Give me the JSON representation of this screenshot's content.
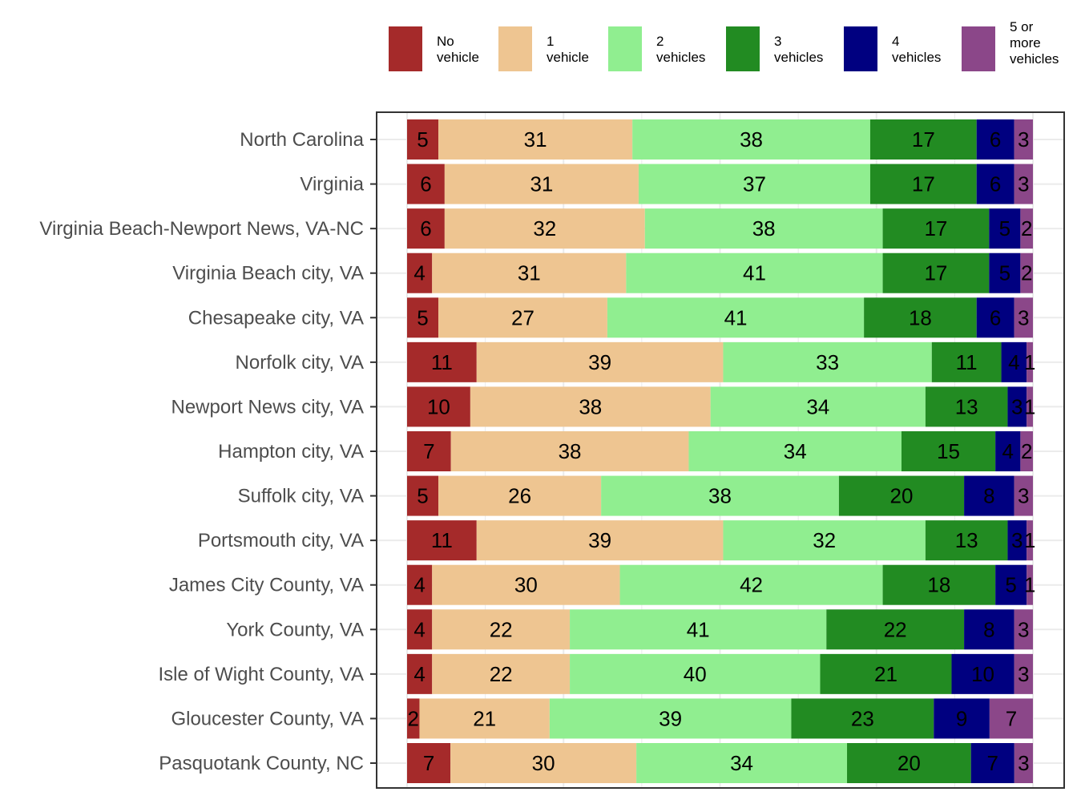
{
  "chart_data": {
    "type": "bar",
    "orientation": "horizontal",
    "stacked": "fill",
    "title": "",
    "xlabel": "",
    "ylabel": "",
    "xlim": [
      0,
      1
    ],
    "x_tick_labels_shown": false,
    "grid": true,
    "legend_position": "top",
    "categories": [
      "North Carolina",
      "Virginia",
      "Virginia Beach-Newport News, VA-NC",
      "Virginia Beach city, VA",
      "Chesapeake city, VA",
      "Norfolk city, VA",
      "Newport News city, VA",
      "Hampton city, VA",
      "Suffolk city, VA",
      "Portsmouth city, VA",
      "James City County, VA",
      "York County, VA",
      "Isle of Wight County, VA",
      "Gloucester County, VA",
      "Pasquotank County, NC"
    ],
    "series": [
      {
        "name": "No vehicle",
        "legend_lines": [
          "No",
          "vehicle"
        ],
        "color": "#A52A2A",
        "values": [
          5,
          6,
          6,
          4,
          5,
          11,
          10,
          7,
          5,
          11,
          4,
          4,
          4,
          2,
          7
        ]
      },
      {
        "name": "1 vehicle",
        "legend_lines": [
          "1",
          "vehicle"
        ],
        "color": "#EEC591",
        "values": [
          31,
          31,
          32,
          31,
          27,
          39,
          38,
          38,
          26,
          39,
          30,
          22,
          22,
          21,
          30
        ]
      },
      {
        "name": "2 vehicles",
        "legend_lines": [
          "2",
          "vehicles"
        ],
        "color": "#90EE90",
        "values": [
          38,
          37,
          38,
          41,
          41,
          33,
          34,
          34,
          38,
          32,
          42,
          41,
          40,
          39,
          34
        ]
      },
      {
        "name": "3 vehicles",
        "legend_lines": [
          "3",
          "vehicles"
        ],
        "color": "#228B22",
        "values": [
          17,
          17,
          17,
          17,
          18,
          11,
          13,
          15,
          20,
          13,
          18,
          22,
          21,
          23,
          20
        ]
      },
      {
        "name": "4 vehicles",
        "legend_lines": [
          "4",
          "vehicles"
        ],
        "color": "#000080",
        "values": [
          6,
          6,
          5,
          5,
          6,
          4,
          3,
          4,
          8,
          3,
          5,
          8,
          10,
          9,
          7
        ]
      },
      {
        "name": "5 or more vehicles",
        "legend_lines": [
          "5 or",
          "more",
          "vehicles"
        ],
        "color": "#8B4789",
        "values": [
          3,
          3,
          2,
          2,
          3,
          1,
          1,
          2,
          3,
          1,
          1,
          3,
          3,
          7,
          3
        ]
      }
    ]
  }
}
